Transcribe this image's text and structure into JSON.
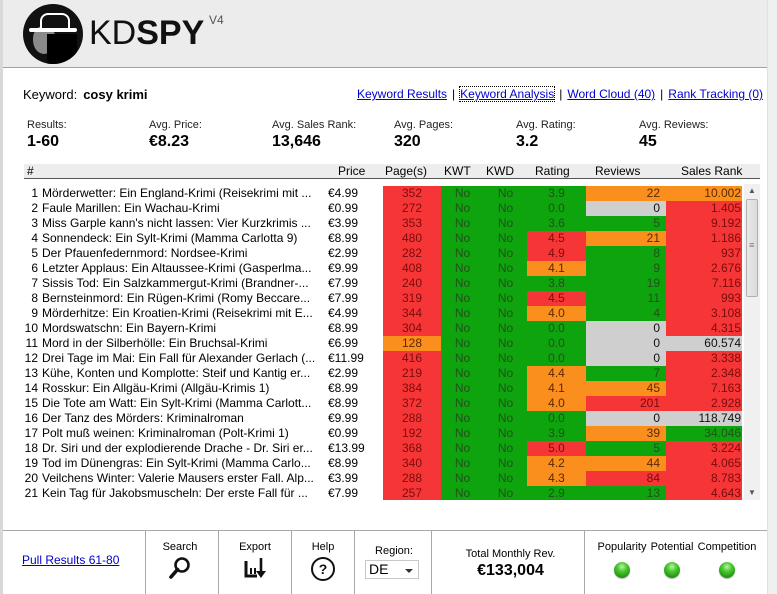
{
  "app": {
    "logo_kd": "KD",
    "logo_spy": "SPY",
    "version": "V4"
  },
  "keyword": {
    "label": "Keyword:",
    "value": "cosy krimi"
  },
  "nav": {
    "links": [
      {
        "label": "Keyword Results"
      },
      {
        "label": "Keyword Analysis",
        "active": true
      },
      {
        "label": "Word Cloud (40)"
      },
      {
        "label": "Rank Tracking (0)"
      }
    ],
    "separator": "|"
  },
  "stats": [
    {
      "label": "Results:",
      "value": "1-60"
    },
    {
      "label": "Avg. Price:",
      "value": "€8.23"
    },
    {
      "label": "Avg. Sales Rank:",
      "value": "13,646"
    },
    {
      "label": "Avg. Pages:",
      "value": "320"
    },
    {
      "label": "Avg. Rating:",
      "value": "3.2"
    },
    {
      "label": "Avg. Reviews:",
      "value": "45"
    }
  ],
  "table": {
    "headers": {
      "num": "#",
      "price": "Price",
      "pages": "Page(s)",
      "kwt": "KWT",
      "kwd": "KWD",
      "rating": "Rating",
      "reviews": "Reviews",
      "rank": "Sales Rank"
    },
    "colors": {
      "red": "#f63636",
      "green": "#0ea40e",
      "orange": "#fb8f1e",
      "grey": "#cfcfcf"
    },
    "rows": [
      {
        "num": "1",
        "title": "Mörderwetter: Ein England-Krimi (Reisekrimi mit ...",
        "price": "€4.99",
        "pages": "352",
        "pages_c": "red",
        "kwt": "No",
        "kwd": "No",
        "rating": "3.9",
        "rating_c": "green",
        "reviews": "22",
        "reviews_c": "orange",
        "rank": "10.002",
        "rank_c": "orange"
      },
      {
        "num": "2",
        "title": "Faule Marillen: Ein Wachau-Krimi",
        "price": "€0.99",
        "pages": "272",
        "pages_c": "red",
        "kwt": "No",
        "kwd": "No",
        "rating": "0.0",
        "rating_c": "green",
        "reviews": "0",
        "reviews_c": "grey",
        "rank": "1.405",
        "rank_c": "red"
      },
      {
        "num": "3",
        "title": "Miss Garple kann's nicht lassen: Vier Kurzkrimis ...",
        "price": "€3.99",
        "pages": "353",
        "pages_c": "red",
        "kwt": "No",
        "kwd": "No",
        "rating": "3.6",
        "rating_c": "green",
        "reviews": "5",
        "reviews_c": "green",
        "rank": "9.192",
        "rank_c": "red"
      },
      {
        "num": "4",
        "title": "Sonnendeck: Ein Sylt-Krimi (Mamma Carlotta 9)",
        "price": "€8.99",
        "pages": "480",
        "pages_c": "red",
        "kwt": "No",
        "kwd": "No",
        "rating": "4.5",
        "rating_c": "red",
        "reviews": "21",
        "reviews_c": "orange",
        "rank": "1.186",
        "rank_c": "red"
      },
      {
        "num": "5",
        "title": "Der Pfauenfedernmord: Nordsee-Krimi",
        "price": "€2.99",
        "pages": "282",
        "pages_c": "red",
        "kwt": "No",
        "kwd": "No",
        "rating": "4.9",
        "rating_c": "red",
        "reviews": "8",
        "reviews_c": "green",
        "rank": "937",
        "rank_c": "red"
      },
      {
        "num": "6",
        "title": "Letzter Applaus: Ein Altaussee-Krimi (Gasperlma...",
        "price": "€9.99",
        "pages": "408",
        "pages_c": "red",
        "kwt": "No",
        "kwd": "No",
        "rating": "4.1",
        "rating_c": "orange",
        "reviews": "9",
        "reviews_c": "green",
        "rank": "2.676",
        "rank_c": "red"
      },
      {
        "num": "7",
        "title": "Sissis Tod: Ein Salzkammergut-Krimi (Brandner-...",
        "price": "€7.99",
        "pages": "240",
        "pages_c": "red",
        "kwt": "No",
        "kwd": "No",
        "rating": "3.8",
        "rating_c": "green",
        "reviews": "19",
        "reviews_c": "green",
        "rank": "7.116",
        "rank_c": "red"
      },
      {
        "num": "8",
        "title": "Bernsteinmord: Ein Rügen-Krimi (Romy Beccare...",
        "price": "€7.99",
        "pages": "319",
        "pages_c": "red",
        "kwt": "No",
        "kwd": "No",
        "rating": "4.5",
        "rating_c": "red",
        "reviews": "11",
        "reviews_c": "green",
        "rank": "993",
        "rank_c": "red"
      },
      {
        "num": "9",
        "title": "Mörderhitze: Ein Kroatien-Krimi (Reisekrimi mit E...",
        "price": "€4.99",
        "pages": "344",
        "pages_c": "red",
        "kwt": "No",
        "kwd": "No",
        "rating": "4.0",
        "rating_c": "orange",
        "reviews": "4",
        "reviews_c": "green",
        "rank": "3.108",
        "rank_c": "red"
      },
      {
        "num": "10",
        "title": "Mordswatschn: Ein Bayern-Krimi",
        "price": "€8.99",
        "pages": "304",
        "pages_c": "red",
        "kwt": "No",
        "kwd": "No",
        "rating": "0.0",
        "rating_c": "green",
        "reviews": "0",
        "reviews_c": "grey",
        "rank": "4.315",
        "rank_c": "red"
      },
      {
        "num": "11",
        "title": "Mord in der Silberhölle: Ein Bruchsal-Krimi",
        "price": "€6.99",
        "pages": "128",
        "pages_c": "orange",
        "kwt": "No",
        "kwd": "No",
        "rating": "0.0",
        "rating_c": "green",
        "reviews": "0",
        "reviews_c": "grey",
        "rank": "60.574",
        "rank_c": "grey"
      },
      {
        "num": "12",
        "title": "Drei Tage im Mai: Ein Fall für Alexander Gerlach (...",
        "price": "€11.99",
        "pages": "416",
        "pages_c": "red",
        "kwt": "No",
        "kwd": "No",
        "rating": "0.0",
        "rating_c": "green",
        "reviews": "0",
        "reviews_c": "grey",
        "rank": "3.338",
        "rank_c": "red"
      },
      {
        "num": "13",
        "title": "Kühe, Konten und Komplotte: Steif und Kantig er...",
        "price": "€2.99",
        "pages": "219",
        "pages_c": "red",
        "kwt": "No",
        "kwd": "No",
        "rating": "4.4",
        "rating_c": "orange",
        "reviews": "7",
        "reviews_c": "green",
        "rank": "2.348",
        "rank_c": "red"
      },
      {
        "num": "14",
        "title": "Rosskur: Ein Allgäu-Krimi (Allgäu-Krimis 1)",
        "price": "€8.99",
        "pages": "384",
        "pages_c": "red",
        "kwt": "No",
        "kwd": "No",
        "rating": "4.1",
        "rating_c": "orange",
        "reviews": "45",
        "reviews_c": "orange",
        "rank": "7.163",
        "rank_c": "red"
      },
      {
        "num": "15",
        "title": "Die Tote am Watt: Ein Sylt-Krimi (Mamma Carlott...",
        "price": "€8.99",
        "pages": "372",
        "pages_c": "red",
        "kwt": "No",
        "kwd": "No",
        "rating": "4.0",
        "rating_c": "orange",
        "reviews": "201",
        "reviews_c": "red",
        "rank": "2.928",
        "rank_c": "red"
      },
      {
        "num": "16",
        "title": "Der Tanz des Mörders: Kriminalroman",
        "price": "€9.99",
        "pages": "288",
        "pages_c": "red",
        "kwt": "No",
        "kwd": "No",
        "rating": "0.0",
        "rating_c": "green",
        "reviews": "0",
        "reviews_c": "grey",
        "rank": "118.749",
        "rank_c": "grey"
      },
      {
        "num": "17",
        "title": "Polt muß weinen: Kriminalroman (Polt-Krimi 1)",
        "price": "€0.99",
        "pages": "192",
        "pages_c": "red",
        "kwt": "No",
        "kwd": "No",
        "rating": "3.9",
        "rating_c": "green",
        "reviews": "39",
        "reviews_c": "orange",
        "rank": "34.046",
        "rank_c": "green"
      },
      {
        "num": "18",
        "title": "Dr. Siri und der explodierende Drache - Dr. Siri er...",
        "price": "€13.99",
        "pages": "368",
        "pages_c": "red",
        "kwt": "No",
        "kwd": "No",
        "rating": "5.0",
        "rating_c": "red",
        "reviews": "5",
        "reviews_c": "green",
        "rank": "3.224",
        "rank_c": "red"
      },
      {
        "num": "19",
        "title": "Tod im Dünengras: Ein Sylt-Krimi (Mamma Carlo...",
        "price": "€8.99",
        "pages": "340",
        "pages_c": "red",
        "kwt": "No",
        "kwd": "No",
        "rating": "4.2",
        "rating_c": "orange",
        "reviews": "44",
        "reviews_c": "orange",
        "rank": "4.065",
        "rank_c": "red"
      },
      {
        "num": "20",
        "title": "Veilchens Winter: Valerie Mausers erster Fall. Alp...",
        "price": "€3.99",
        "pages": "288",
        "pages_c": "red",
        "kwt": "No",
        "kwd": "No",
        "rating": "4.3",
        "rating_c": "orange",
        "reviews": "84",
        "reviews_c": "red",
        "rank": "8.783",
        "rank_c": "red"
      },
      {
        "num": "21",
        "title": "Kein Tag für Jakobsmuscheln: Der erste Fall für ...",
        "price": "€7.99",
        "pages": "257",
        "pages_c": "red",
        "kwt": "No",
        "kwd": "No",
        "rating": "2.9",
        "rating_c": "green",
        "reviews": "13",
        "reviews_c": "green",
        "rank": "4.643",
        "rank_c": "red"
      }
    ]
  },
  "footer": {
    "pull_results": "Pull Results 61-80",
    "search_label": "Search",
    "export_label": "Export",
    "help_label": "Help",
    "region_label": "Region:",
    "region_value": "DE",
    "revenue_label": "Total Monthly Rev.",
    "revenue_value": "€133,004",
    "indicators": [
      {
        "label": "Popularity",
        "status": "green"
      },
      {
        "label": "Potential",
        "status": "green"
      },
      {
        "label": "Competition",
        "status": "green"
      }
    ]
  }
}
